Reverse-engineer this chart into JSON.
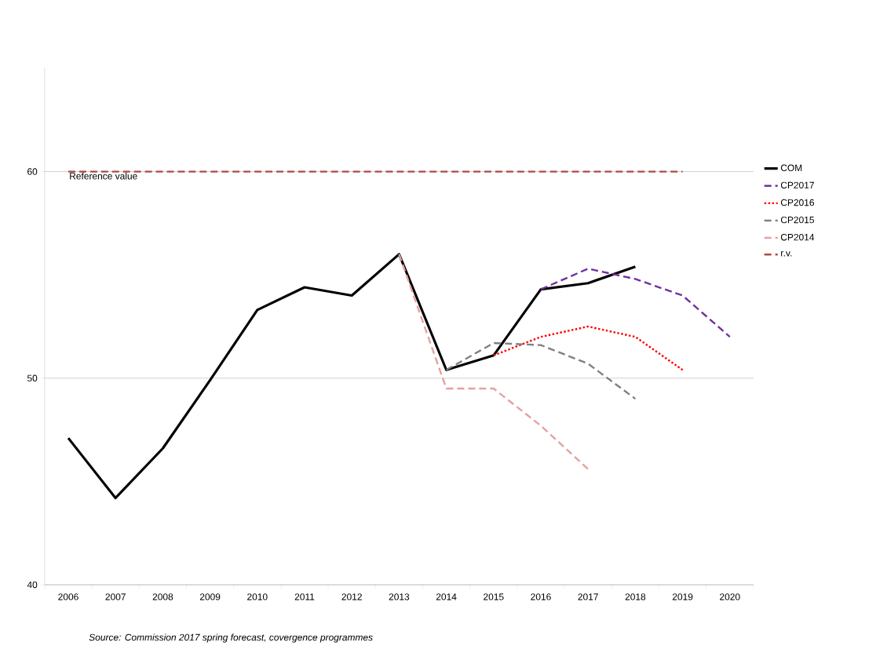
{
  "chart_data": {
    "type": "line",
    "categories": [
      "2006",
      "2007",
      "2008",
      "2009",
      "2010",
      "2011",
      "2012",
      "2013",
      "2014",
      "2015",
      "2016",
      "2017",
      "2018",
      "2019",
      "2020"
    ],
    "series": [
      {
        "name": "COM",
        "color": "#000000",
        "line_style": "solid",
        "values": [
          47.1,
          44.2,
          46.6,
          49.9,
          53.3,
          54.4,
          54.0,
          56.0,
          50.4,
          51.1,
          54.3,
          54.6,
          55.4,
          null,
          null
        ]
      },
      {
        "name": "CP2017",
        "color": "#7030a0",
        "line_style": "dashed",
        "values": [
          null,
          null,
          null,
          null,
          null,
          null,
          null,
          null,
          null,
          null,
          54.3,
          55.3,
          54.8,
          54.0,
          52.0
        ]
      },
      {
        "name": "CP2016",
        "color": "#ff0000",
        "line_style": "dotted",
        "values": [
          null,
          null,
          null,
          null,
          null,
          null,
          null,
          null,
          null,
          51.1,
          52.0,
          52.5,
          52.0,
          50.4,
          null
        ]
      },
      {
        "name": "CP2015",
        "color": "#808080",
        "line_style": "dashed",
        "values": [
          null,
          null,
          null,
          null,
          null,
          null,
          null,
          null,
          50.4,
          51.7,
          51.6,
          50.7,
          49.0,
          null,
          null
        ]
      },
      {
        "name": "CP2014",
        "color": "#e6a0a0",
        "line_style": "dashed",
        "values": [
          null,
          null,
          null,
          null,
          null,
          null,
          null,
          56.0,
          49.5,
          49.5,
          47.7,
          45.6,
          null,
          null,
          null
        ]
      },
      {
        "name": "r.v.",
        "color": "#b04848",
        "line_style": "dashed",
        "values": [
          60,
          60,
          60,
          60,
          60,
          60,
          60,
          60,
          60,
          60,
          60,
          60,
          60,
          60,
          null
        ]
      }
    ],
    "ylim": [
      40,
      65
    ],
    "yticks": [
      40,
      50,
      60
    ],
    "grid": "y",
    "legend": "right",
    "marker": "none",
    "annotations": [
      {
        "text": "Reference value",
        "x": "2006",
        "y": 60
      },
      "Source: Commission 2017 spring forecast, covergence programmes"
    ]
  }
}
